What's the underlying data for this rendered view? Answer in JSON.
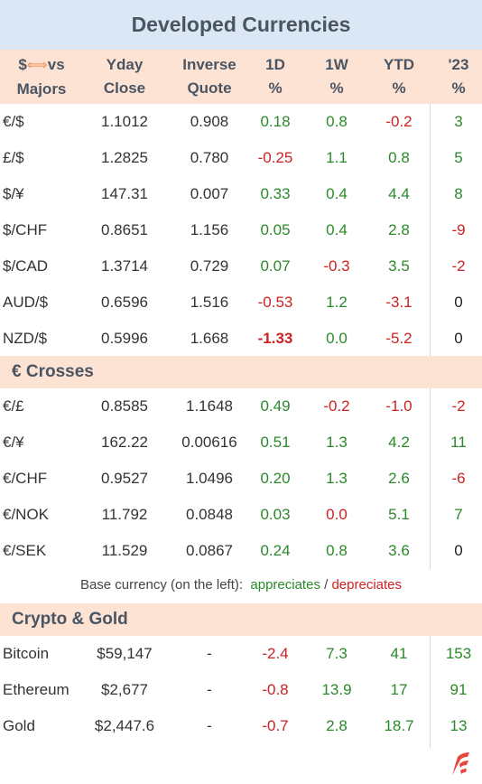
{
  "title": "Developed Currencies",
  "header": {
    "col0_line1": "$",
    "col0_arrow": "⟺",
    "col0_vs": "vs",
    "col0_line2": "Majors",
    "col1_line1": "Yday",
    "col1_line2": "Close",
    "col2_line1": "Inverse",
    "col2_line2": "Quote",
    "col3_line1": "1D",
    "col3_line2": "%",
    "col4_line1": "1W",
    "col4_line2": "%",
    "col5_line1": "YTD",
    "col5_line2": "%",
    "col6_line1": "'23",
    "col6_line2": "%"
  },
  "majors": [
    {
      "pair": "€/$",
      "close": "1.1012",
      "inverse": "0.908",
      "d1": "0.18",
      "w1": "0.8",
      "ytd": "-0.2",
      "y23": "3"
    },
    {
      "pair": "£/$",
      "close": "1.2825",
      "inverse": "0.780",
      "d1": "-0.25",
      "w1": "1.1",
      "ytd": "0.8",
      "y23": "5"
    },
    {
      "pair": "$/¥",
      "close": "147.31",
      "inverse": "0.007",
      "d1": "0.33",
      "w1": "0.4",
      "ytd": "4.4",
      "y23": "8"
    },
    {
      "pair": "$/CHF",
      "close": "0.8651",
      "inverse": "1.156",
      "d1": "0.05",
      "w1": "0.4",
      "ytd": "2.8",
      "y23": "-9"
    },
    {
      "pair": "$/CAD",
      "close": "1.3714",
      "inverse": "0.729",
      "d1": "0.07",
      "w1": "-0.3",
      "ytd": "3.5",
      "y23": "-2"
    },
    {
      "pair": "AUD/$",
      "close": "0.6596",
      "inverse": "1.516",
      "d1": "-0.53",
      "w1": "1.2",
      "ytd": "-3.1",
      "y23": "0"
    },
    {
      "pair": "NZD/$",
      "close": "0.5996",
      "inverse": "1.668",
      "d1": "-1.33",
      "w1": "0.0",
      "ytd": "-5.2",
      "y23": "0"
    }
  ],
  "crosses_label": "€ Crosses",
  "crosses": [
    {
      "pair": "€/£",
      "close": "0.8585",
      "inverse": "1.1648",
      "d1": "0.49",
      "w1": "-0.2",
      "ytd": "-1.0",
      "y23": "-2"
    },
    {
      "pair": "€/¥",
      "close": "162.22",
      "inverse": "0.00616",
      "d1": "0.51",
      "w1": "1.3",
      "ytd": "4.2",
      "y23": "11"
    },
    {
      "pair": "€/CHF",
      "close": "0.9527",
      "inverse": "1.0496",
      "d1": "0.20",
      "w1": "1.3",
      "ytd": "2.6",
      "y23": "-6"
    },
    {
      "pair": "€/NOK",
      "close": "11.792",
      "inverse": "0.0848",
      "d1": "0.03",
      "w1": "0.0",
      "ytd": "5.1",
      "y23": "7"
    },
    {
      "pair": "€/SEK",
      "close": "11.529",
      "inverse": "0.0867",
      "d1": "0.24",
      "w1": "0.8",
      "ytd": "3.6",
      "y23": "0"
    }
  ],
  "note": {
    "prefix": "Base currency (on the left):",
    "appreciates": "appreciates",
    "sep": " / ",
    "depreciates": "depreciates"
  },
  "crypto_label": "Crypto & Gold",
  "crypto": [
    {
      "name": "Bitcoin",
      "close": "$59,147",
      "inverse": "-",
      "d1": "-2.4",
      "w1": "7.3",
      "ytd": "41",
      "y23": "153"
    },
    {
      "name": "Ethereum",
      "close": "$2,677",
      "inverse": "-",
      "d1": "-0.8",
      "w1": "13.9",
      "ytd": "17",
      "y23": "91"
    },
    {
      "name": "Gold",
      "close": "$2,447.6",
      "inverse": "-",
      "d1": "-0.7",
      "w1": "2.8",
      "ytd": "18.7",
      "y23": "13"
    }
  ],
  "colors": {
    "positive": "#2a8a2a",
    "negative": "#cc2222",
    "header_bg": "#fde3d3",
    "title_bg": "#dbe7f4"
  },
  "logo_icon": "brand-flag-logo-icon"
}
